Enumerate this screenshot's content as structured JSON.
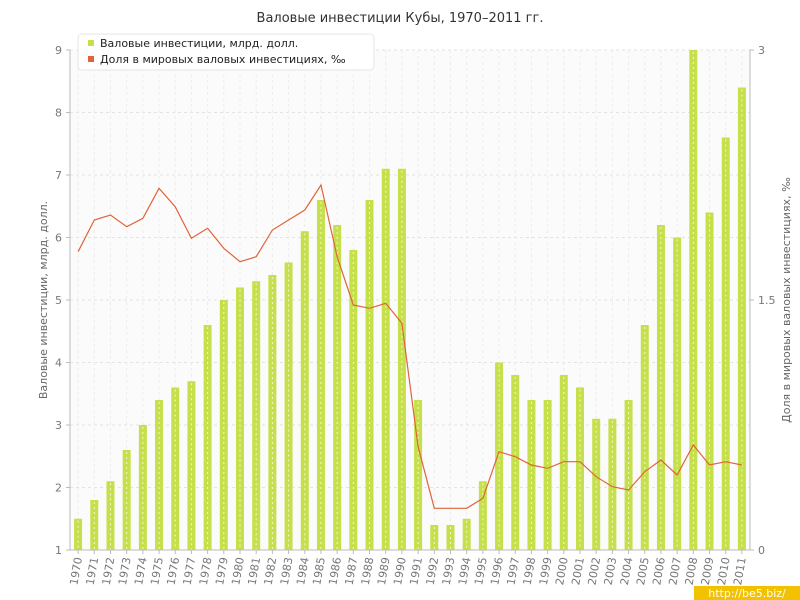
{
  "chart_data": {
    "type": "bar",
    "title": "Валовые инвестиции Кубы, 1970–2011 гг.",
    "ylabel": "Валовые инвестиции, млрд. долл.",
    "y2label": "Доля в мировых валовых инвестициях, ‰",
    "ylim": [
      1,
      9
    ],
    "y2lim": [
      0,
      3
    ],
    "yticks": [
      "1",
      "2",
      "3",
      "4",
      "5",
      "6",
      "7",
      "8",
      "9"
    ],
    "y2ticks": [
      "0",
      "1.5",
      "3"
    ],
    "grid": true,
    "legend_position": "top-left",
    "categories": [
      "1970",
      "1971",
      "1972",
      "1973",
      "1974",
      "1975",
      "1976",
      "1977",
      "1978",
      "1979",
      "1980",
      "1981",
      "1982",
      "1983",
      "1984",
      "1985",
      "1986",
      "1987",
      "1988",
      "1989",
      "1990",
      "1991",
      "1992",
      "1993",
      "1994",
      "1995",
      "1996",
      "1997",
      "1998",
      "1999",
      "2000",
      "2001",
      "2002",
      "2003",
      "2004",
      "2005",
      "2006",
      "2007",
      "2008",
      "2009",
      "2010",
      "2011"
    ],
    "series": [
      {
        "name": "Валовые инвестиции, млрд. долл.",
        "type": "bar",
        "axis": "left",
        "color": "#c5e04a",
        "values": [
          1.5,
          1.8,
          2.1,
          2.6,
          3.0,
          3.4,
          3.6,
          3.7,
          4.6,
          5.0,
          5.2,
          5.3,
          5.4,
          5.6,
          6.1,
          6.6,
          6.2,
          5.8,
          6.6,
          7.1,
          7.1,
          3.4,
          1.4,
          1.4,
          1.5,
          2.1,
          4.0,
          3.8,
          3.4,
          3.4,
          3.8,
          3.6,
          3.1,
          3.1,
          3.4,
          4.6,
          6.2,
          6.0,
          9.0,
          6.4,
          7.6,
          8.4
        ]
      },
      {
        "name": "Доля в мировых валовых инвестициях, ‰",
        "type": "line",
        "axis": "right",
        "color": "#e0643a",
        "values": [
          1.79,
          1.98,
          2.01,
          1.94,
          1.99,
          2.17,
          2.06,
          1.87,
          1.93,
          1.81,
          1.73,
          1.76,
          1.92,
          1.98,
          2.04,
          2.19,
          1.76,
          1.47,
          1.45,
          1.48,
          1.36,
          0.62,
          0.25,
          0.25,
          0.25,
          0.31,
          0.59,
          0.56,
          0.51,
          0.49,
          0.53,
          0.53,
          0.44,
          0.38,
          0.36,
          0.47,
          0.54,
          0.45,
          0.63,
          0.51,
          0.53,
          0.51
        ]
      }
    ]
  },
  "watermark": "http://be5.biz/"
}
